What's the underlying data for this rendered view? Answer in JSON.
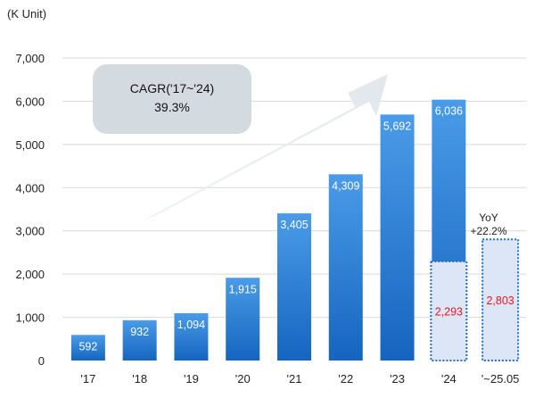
{
  "chart_data": {
    "type": "bar",
    "unit_label": "(K Unit)",
    "categories": [
      "'17",
      "'18",
      "'19",
      "'20",
      "'21",
      "'22",
      "'23",
      "'24",
      "'~25.05"
    ],
    "values": [
      592,
      932,
      1094,
      1915,
      3405,
      4309,
      5692,
      6036,
      null
    ],
    "value_labels": [
      "592",
      "932",
      "1,094",
      "1,915",
      "3,405",
      "4,309",
      "5,692",
      "6,036",
      ""
    ],
    "partial_series": {
      "categories": [
        "'24",
        "'~25.05"
      ],
      "values": [
        2293,
        2803
      ],
      "labels": [
        "2,293",
        "2,803"
      ]
    },
    "ylim": [
      0,
      7000
    ],
    "y_ticks": [
      0,
      1000,
      2000,
      3000,
      4000,
      5000,
      6000,
      7000
    ],
    "y_tick_labels": [
      "0",
      "1,000",
      "2,000",
      "3,000",
      "4,000",
      "5,000",
      "6,000",
      "7,000"
    ],
    "grid": true,
    "annotation_cagr": {
      "line1": "CAGR('17~'24)",
      "line2": "39.3%"
    },
    "annotation_yoy": {
      "line1": "YoY",
      "line2": "+22.2%"
    },
    "colors": {
      "bar_top": "#4a9be8",
      "bar_bottom": "#1565c0",
      "partial_fill": "#dde6f7",
      "partial_border": "#1f6fd1",
      "red_label": "#e8151b",
      "grid": "#d9d9d9",
      "cagr_box": "#d3dbe0",
      "arrow": "#e3e9ee"
    }
  }
}
